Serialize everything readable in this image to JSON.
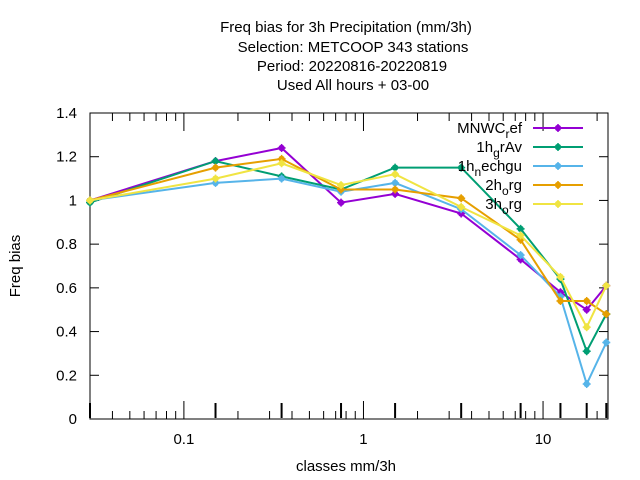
{
  "chart_data": {
    "type": "line",
    "title_lines": [
      "Freq bias  for 3h Precipitation (mm/3h)",
      "Selection: METCOOP    343 stations",
      "Period: 20220816-20220819",
      "Used  All hours  + 03-00"
    ],
    "xlabel": "classes mm/3h",
    "ylabel": "Freq bias",
    "xscale": "log",
    "xlim": [
      0.03,
      23
    ],
    "ylim": [
      0,
      1.4
    ],
    "xticks": [
      {
        "v": 0.1,
        "label": "0.1"
      },
      {
        "v": 1,
        "label": "1"
      },
      {
        "v": 10,
        "label": "10"
      }
    ],
    "yticks": [
      {
        "v": 0,
        "label": "0"
      },
      {
        "v": 0.2,
        "label": "0.2"
      },
      {
        "v": 0.4,
        "label": "0.4"
      },
      {
        "v": 0.6,
        "label": "0.6"
      },
      {
        "v": 0.8,
        "label": "0.8"
      },
      {
        "v": 1,
        "label": "1"
      },
      {
        "v": 1.2,
        "label": "1.2"
      },
      {
        "v": 1.4,
        "label": "1.4"
      }
    ],
    "legend_position": "top-right",
    "x": [
      0.03,
      0.15,
      0.35,
      0.75,
      1.5,
      3.5,
      7.5,
      12.5,
      17.5,
      22.5
    ],
    "series": [
      {
        "name": "MNWC_ref",
        "legend_main": "MNWC",
        "legend_sub": "r",
        "legend_tail": "ef",
        "color": "#9400d3",
        "values": [
          1.0,
          1.18,
          1.24,
          0.99,
          1.03,
          0.94,
          0.73,
          0.58,
          0.5,
          0.61
        ]
      },
      {
        "name": "1h_grAv",
        "legend_main": "1h",
        "legend_sub": "g",
        "legend_tail": "rAv",
        "color": "#009e73",
        "values": [
          0.99,
          1.18,
          1.11,
          1.05,
          1.15,
          1.15,
          0.87,
          0.64,
          0.31,
          0.48
        ]
      },
      {
        "name": "1h_nechgu",
        "legend_main": "1h",
        "legend_sub": "n",
        "legend_tail": "echgu",
        "color": "#56b4e9",
        "values": [
          1.0,
          1.08,
          1.1,
          1.04,
          1.08,
          0.96,
          0.75,
          0.56,
          0.16,
          0.35
        ]
      },
      {
        "name": "2h_org",
        "legend_main": "2h",
        "legend_sub": "o",
        "legend_tail": "rg",
        "color": "#e69f00",
        "values": [
          1.0,
          1.15,
          1.19,
          1.05,
          1.05,
          1.01,
          0.82,
          0.54,
          0.54,
          0.48
        ]
      },
      {
        "name": "3h_org",
        "legend_main": "3h",
        "legend_sub": "o",
        "legend_tail": "rg",
        "color": "#f0e442",
        "values": [
          1.0,
          1.1,
          1.17,
          1.07,
          1.12,
          0.97,
          0.84,
          0.65,
          0.42,
          0.61
        ]
      }
    ]
  }
}
